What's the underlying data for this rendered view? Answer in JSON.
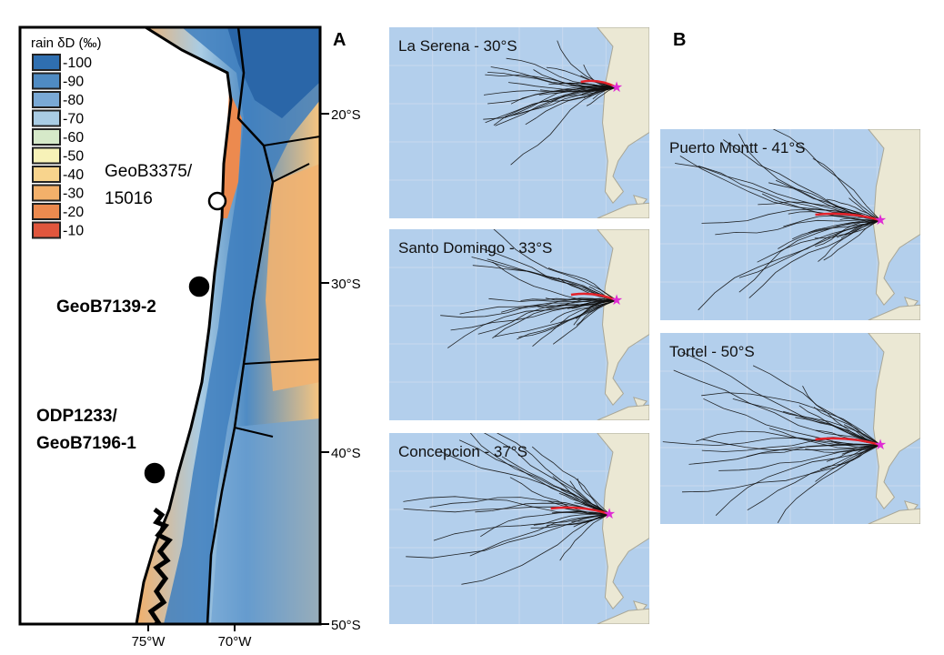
{
  "panel_a": {
    "label": "A",
    "legend": {
      "title": "rain δD (‰)",
      "entries": [
        {
          "value": "-100",
          "color": "#2f6fb0"
        },
        {
          "value": "-90",
          "color": "#4f8bc3"
        },
        {
          "value": "-80",
          "color": "#7aa9d5"
        },
        {
          "value": "-70",
          "color": "#a9cce4"
        },
        {
          "value": "-60",
          "color": "#d6e9c9"
        },
        {
          "value": "-50",
          "color": "#f7f2b8"
        },
        {
          "value": "-40",
          "color": "#f8d48d"
        },
        {
          "value": "-30",
          "color": "#f3b06a"
        },
        {
          "value": "-20",
          "color": "#ec8a4f"
        },
        {
          "value": "-10",
          "color": "#e0563d"
        }
      ]
    },
    "lat_ticks": [
      "20°S",
      "30°S",
      "40°S",
      "50°S"
    ],
    "lon_ticks": [
      "75°W",
      "70°W"
    ],
    "sites": [
      {
        "name": "GeoB3375/\n15016",
        "lines": [
          "GeoB3375/",
          "15016"
        ],
        "marker": "open"
      },
      {
        "name": "GeoB7139-2",
        "lines": [
          "GeoB7139-2"
        ],
        "marker": "filled"
      },
      {
        "name": "ODP1233/\nGeoB7196-1",
        "lines": [
          "ODP1233/",
          "GeoB7196-1"
        ],
        "marker": "filled"
      }
    ]
  },
  "panel_b": {
    "label": "B",
    "maps": [
      {
        "title": "La Serena - 30°S"
      },
      {
        "title": "Santo Domingo - 33°S"
      },
      {
        "title": "Concepcion - 37°S"
      },
      {
        "title": "Puerto Montt - 41°S"
      },
      {
        "title": "Tortel - 50°S"
      }
    ]
  },
  "colors": {
    "ocean": "#b3cfec",
    "land": "#ebe8d4",
    "trajectory": "#111111",
    "mean_trajectory": "#e3222a",
    "site_star": "#e02bd3"
  }
}
